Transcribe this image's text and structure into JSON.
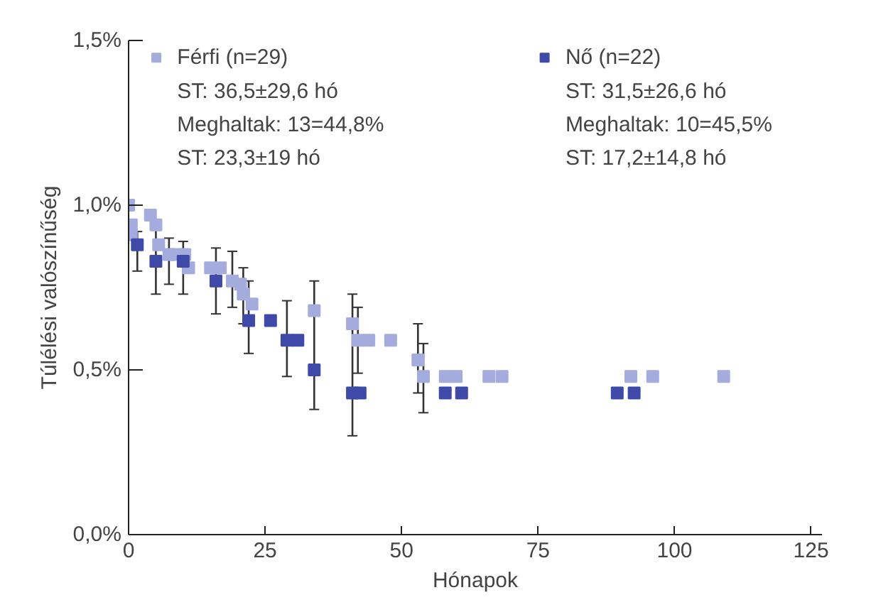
{
  "chart_data": {
    "type": "scatter",
    "xlabel": "Hónapok",
    "ylabel": "Túlélési valószínűség",
    "xlim": [
      0,
      127
    ],
    "xticks": [
      0,
      25,
      50,
      75,
      100,
      125
    ],
    "ylim": [
      0,
      1.5
    ],
    "yticks": [
      {
        "value": 0,
        "label": "0,0%"
      },
      {
        "value": 0.5,
        "label": "0,5%"
      },
      {
        "value": 1.0,
        "label": "1,0%"
      },
      {
        "value": 1.5,
        "label": "1,5%"
      }
    ],
    "marker": "square",
    "grid": false,
    "legend": "top",
    "series": [
      {
        "name": "Férfi (n=29)",
        "color": "#a4acde",
        "x": [
          0,
          0.5,
          0.5,
          4,
          5,
          5.5,
          7.4,
          8.6,
          10.3,
          11,
          15,
          16.8,
          19,
          20.5,
          21,
          22.6,
          34,
          41,
          42,
          44,
          48,
          53,
          54,
          58,
          60,
          66,
          68.4,
          92,
          96,
          109
        ],
        "values": [
          1.0,
          0.94,
          0.91,
          0.97,
          0.94,
          0.88,
          0.85,
          0.85,
          0.85,
          0.81,
          0.81,
          0.81,
          0.77,
          0.76,
          0.73,
          0.7,
          0.68,
          0.64,
          0.59,
          0.59,
          0.59,
          0.53,
          0.48,
          0.48,
          0.48,
          0.48,
          0.48,
          0.48,
          0.48,
          0.48
        ],
        "errors": [
          null,
          null,
          null,
          null,
          null,
          null,
          [
            0.76,
            0.9
          ],
          null,
          null,
          null,
          null,
          null,
          [
            0.69,
            0.86
          ],
          null,
          [
            0.64,
            0.81
          ],
          null,
          null,
          null,
          [
            0.49,
            0.69
          ],
          null,
          null,
          [
            0.43,
            0.64
          ],
          [
            0.37,
            0.58
          ],
          null,
          null,
          null,
          null,
          null,
          null,
          null
        ]
      },
      {
        "name": "Nő (n=22)",
        "color": "#3f4aa8",
        "x": [
          1.6,
          5,
          10,
          16,
          22,
          26,
          29,
          31,
          34,
          41,
          42.4,
          58,
          61,
          89.5,
          92.6
        ],
        "values": [
          0.88,
          0.83,
          0.83,
          0.77,
          0.65,
          0.65,
          0.59,
          0.59,
          0.5,
          0.43,
          0.43,
          0.43,
          0.43,
          0.43,
          0.43
        ],
        "errors": [
          [
            0.8,
            0.92
          ],
          [
            0.73,
            0.95
          ],
          [
            0.73,
            0.89
          ],
          [
            0.67,
            0.87
          ],
          [
            0.55,
            0.77
          ],
          null,
          [
            0.48,
            0.71
          ],
          null,
          [
            0.38,
            0.77
          ],
          [
            0.3,
            0.73
          ],
          null,
          null,
          null,
          null,
          null
        ]
      }
    ],
    "annotations": [
      "ST: 36,5±29,6 hó",
      "Meghaltak: 13=44,8%",
      "ST: 23,3±19 hó",
      "ST: 31,5±26,6 hó",
      "Meghaltak: 10=45,5%",
      "ST: 17,2±14,8 hó"
    ]
  }
}
